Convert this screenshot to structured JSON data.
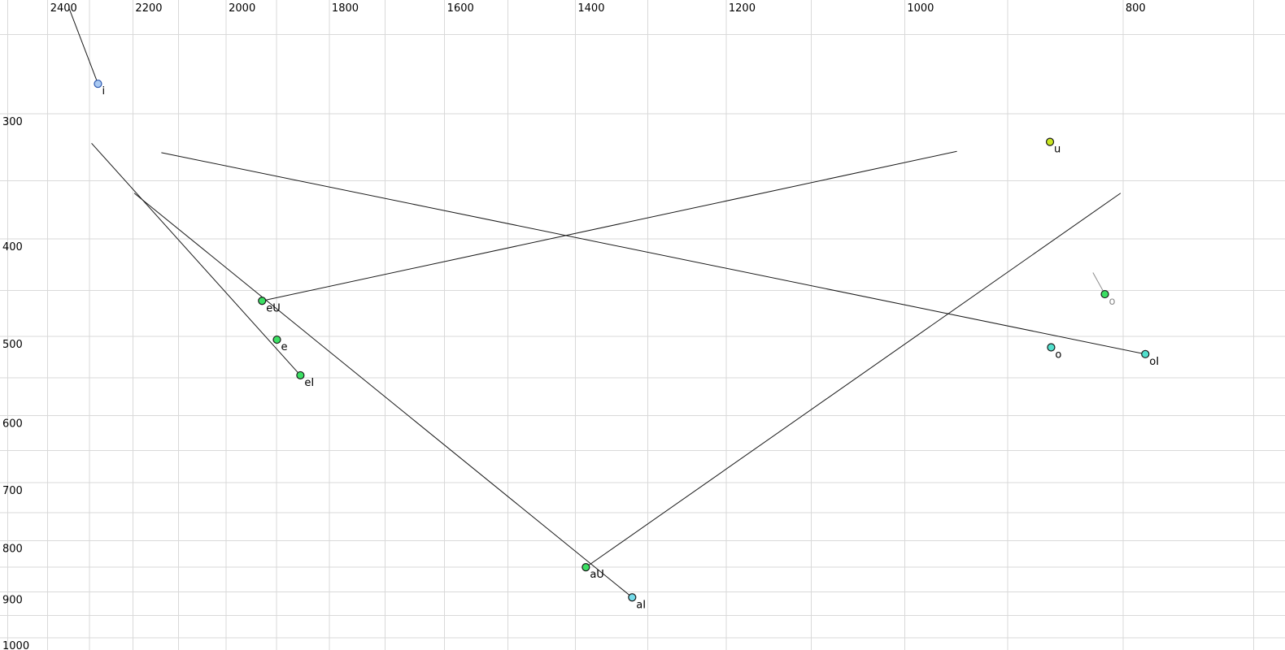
{
  "styles": {
    "background": "#ffffff",
    "gridline_color": "#d9d9d9",
    "tick_label_color": "#000000",
    "trajectory_color": "#1a1a1a",
    "muted_gray": "#8a8a8a",
    "point_radius": 4.5,
    "tick_font_size": 13,
    "point_label_font_size": 13
  },
  "chart_data": {
    "type": "scatter",
    "title": "",
    "description": "Vowel formant chart: F2 (Hz) on reversed log top axis, F1 (Hz) on reversed-orientation log left axis; vowel targets with diphthong trajectory lines",
    "x_axis": {
      "unit": "Hz",
      "scale": "log",
      "reversed": true,
      "position": "top",
      "left_edge_value": 2520,
      "right_edge_value": 678,
      "tick_labels": [
        "2400",
        "2200",
        "2000",
        "1800",
        "1600",
        "1400",
        "1200",
        "1000",
        "800"
      ],
      "tick_values": [
        2400,
        2200,
        2000,
        1800,
        1600,
        1400,
        1200,
        1000,
        800
      ],
      "gridline_from": 2500,
      "gridline_to": 700,
      "gridline_step": 100
    },
    "y_axis": {
      "unit": "Hz",
      "scale": "log",
      "increases_downward": true,
      "position": "left",
      "top_edge_value": 231,
      "bottom_edge_value": 1028,
      "tick_labels": [
        "300",
        "400",
        "500",
        "600",
        "700",
        "800",
        "900",
        "1000"
      ],
      "tick_values": [
        300,
        400,
        500,
        600,
        700,
        800,
        900,
        1000
      ],
      "gridline_from": 250,
      "gridline_to": 1000,
      "gridline_step": 50
    },
    "grid": true,
    "legend": false,
    "points": [
      {
        "id": "i",
        "label": "i",
        "f2": 2280,
        "f1": 280,
        "fill": "#a9c9f2",
        "stroke": "#2d59b0",
        "label_color": "#000000"
      },
      {
        "id": "u",
        "label": "u",
        "f2": 862,
        "f1": 320,
        "fill": "#c9e620",
        "stroke": "#1a1a1a",
        "label_color": "#000000"
      },
      {
        "id": "eU",
        "label": "eU",
        "f2": 1928,
        "f1": 461,
        "fill": "#3bdf63",
        "stroke": "#1a1a1a",
        "label_color": "#000000"
      },
      {
        "id": "e",
        "label": "e",
        "f2": 1899,
        "f1": 504,
        "fill": "#3bdf63",
        "stroke": "#1a1a1a",
        "label_color": "#000000"
      },
      {
        "id": "eI",
        "label": "eI",
        "f2": 1854,
        "f1": 547,
        "fill": "#3bdf63",
        "stroke": "#1a1a1a",
        "label_color": "#000000"
      },
      {
        "id": "o-muted",
        "label": "o",
        "f2": 815,
        "f1": 454,
        "fill": "#3bdf63",
        "stroke": "#1a1a1a",
        "label_color": "#8a8a8a"
      },
      {
        "id": "o",
        "label": "o",
        "f2": 861,
        "f1": 513,
        "fill": "#52e0cd",
        "stroke": "#1a1a1a",
        "label_color": "#000000"
      },
      {
        "id": "oI",
        "label": "oI",
        "f2": 782,
        "f1": 521,
        "fill": "#52e0cd",
        "stroke": "#1a1a1a",
        "label_color": "#000000"
      },
      {
        "id": "aU",
        "label": "aU",
        "f2": 1385,
        "f1": 850,
        "fill": "#3bdf63",
        "stroke": "#1a1a1a",
        "label_color": "#000000"
      },
      {
        "id": "aI",
        "label": "aI",
        "f2": 1321,
        "f1": 911,
        "fill": "#74dbe9",
        "stroke": "#1a1a1a",
        "label_color": "#000000"
      }
    ],
    "trajectories": [
      {
        "for": "i",
        "from": {
          "f2": 2349,
          "f1": 235
        },
        "to": {
          "f2": 2280,
          "f1": 280
        },
        "color": "#1a1a1a"
      },
      {
        "for": "eI",
        "from": {
          "f2": 2295,
          "f1": 321
        },
        "to": {
          "f2": 1854,
          "f1": 547
        },
        "color": "#1a1a1a"
      },
      {
        "for": "aI",
        "from": {
          "f2": 2197,
          "f1": 360
        },
        "to": {
          "f2": 1321,
          "f1": 911
        },
        "color": "#1a1a1a"
      },
      {
        "for": "oI",
        "from": {
          "f2": 2137,
          "f1": 328
        },
        "to": {
          "f2": 782,
          "f1": 521
        },
        "color": "#1a1a1a"
      },
      {
        "for": "eU",
        "from": {
          "f2": 1928,
          "f1": 461
        },
        "to": {
          "f2": 948,
          "f1": 327
        },
        "color": "#1a1a1a"
      },
      {
        "for": "aU",
        "from": {
          "f2": 1385,
          "f1": 850
        },
        "to": {
          "f2": 802,
          "f1": 360
        },
        "color": "#1a1a1a"
      },
      {
        "for": "o-muted",
        "from": {
          "f2": 825,
          "f1": 432
        },
        "to": {
          "f2": 815,
          "f1": 454
        },
        "color": "#8a8a8a"
      }
    ]
  }
}
